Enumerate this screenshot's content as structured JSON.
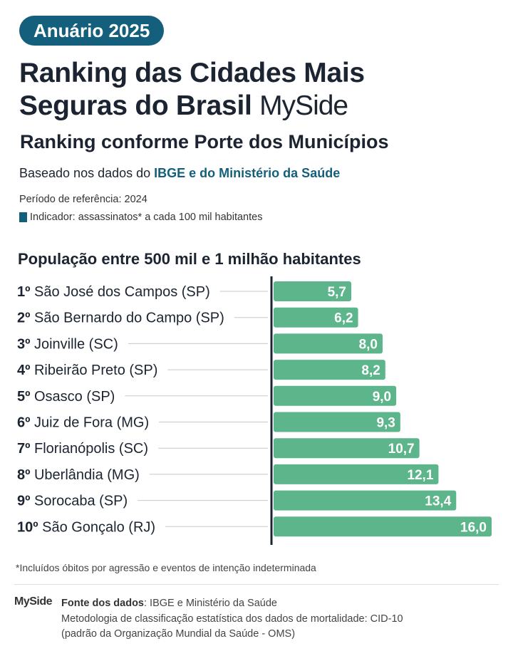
{
  "badge": "Anuário 2025",
  "title_line1": "Ranking das Cidades Mais",
  "title_line2": "Seguras do Brasil",
  "logo": "MySide",
  "subtitle": "Ranking conforme Porte dos Municípios",
  "based_prefix": "Baseado nos dados do ",
  "based_highlight": "IBGE e do Ministério da Saúde",
  "period": "Período de referência: 2024",
  "indicator": "Indicador: assassinatos* a cada 100 mil habitantes",
  "colors": {
    "accent": "#145f7c",
    "bar": "#5db58b",
    "axis": "#1b2430",
    "leader": "#c8c8c8"
  },
  "chart_data": {
    "type": "bar",
    "orientation": "horizontal",
    "title": "População entre 500 mil e 1 milhão habitantes",
    "ranks": [
      "1º",
      "2º",
      "3º",
      "4º",
      "5º",
      "6º",
      "7º",
      "8º",
      "9º",
      "10º"
    ],
    "categories": [
      "São José dos Campos (SP)",
      "São Bernardo do Campo (SP)",
      "Joinville (SC)",
      "Ribeirão Preto (SP)",
      "Osasco (SP)",
      "Juiz de Fora (MG)",
      "Florianópolis (SC)",
      "Uberlândia (MG)",
      "Sorocaba (SP)",
      "São Gonçalo (RJ)"
    ],
    "values": [
      5.7,
      6.2,
      8.0,
      8.2,
      9.0,
      9.3,
      10.7,
      12.1,
      13.4,
      16.0
    ],
    "value_labels": [
      "5,7",
      "6,2",
      "8,0",
      "8,2",
      "9,0",
      "9,3",
      "10,7",
      "12,1",
      "13,4",
      "16,0"
    ],
    "xlim": [
      0,
      16
    ]
  },
  "footnote": "*Incluídos óbitos por agressão e eventos de intenção indeterminada",
  "footer": {
    "logo": "MySide",
    "source_label": "Fonte dos dados",
    "source_value": ": IBGE e Ministério da Saúde",
    "methodology_line1": "Metodologia de classificação estatística dos dados de mortalidade: CID-10",
    "methodology_line2": "(padrão da Organização Mundial da Saúde - OMS)"
  }
}
